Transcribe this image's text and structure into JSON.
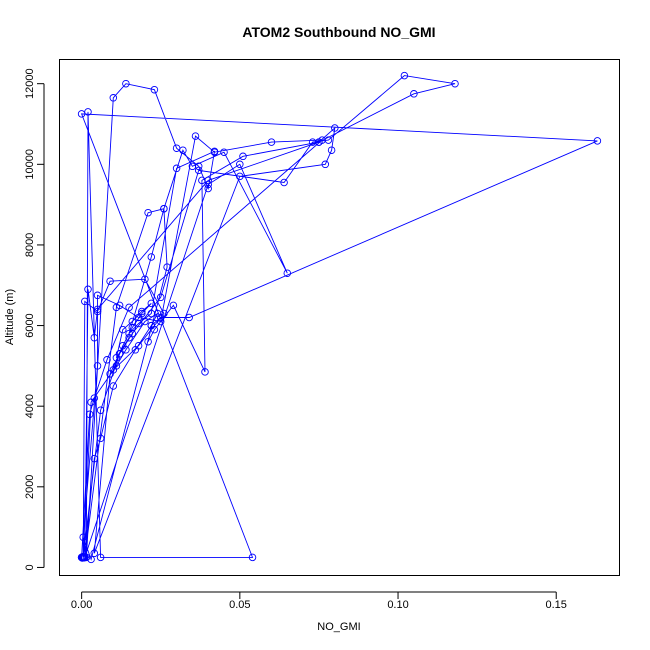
{
  "chart_data": {
    "type": "line",
    "title": "ATOM2 Southbound NO_GMI",
    "xlabel": "NO_GMI",
    "ylabel": "Altitude (m)",
    "xlim": [
      -0.007,
      0.17
    ],
    "ylim": [
      -200,
      12600
    ],
    "x_ticks": [
      0.0,
      0.05,
      0.1,
      0.15
    ],
    "x_tick_labels": [
      "0.00",
      "0.05",
      "0.10",
      "0.15"
    ],
    "y_ticks": [
      0,
      2000,
      4000,
      6000,
      8000,
      10000,
      12000
    ],
    "y_tick_labels": [
      "0",
      "2000",
      "4000",
      "6000",
      "8000",
      "10000",
      "12000"
    ],
    "series_color": "#0000ff",
    "marker": "open-circle",
    "grid": false,
    "series": [
      {
        "x": [
          0.0006,
          0.003,
          0.011,
          0.014,
          0.02,
          0.024,
          0.022,
          0.021,
          0.023,
          0.029,
          0.039,
          0.038,
          0.051,
          0.075,
          0.08,
          0.079,
          0.077,
          0.05,
          0.004,
          0.009,
          0.013,
          0.016,
          0.019,
          0.022,
          0.019,
          0.016,
          0.013,
          0.011,
          0.015,
          0.012,
          0.01,
          0.018,
          0.026,
          0.02,
          0.009,
          0.005,
          0.001,
          0.0005,
          0.006,
          0.012,
          0.016,
          0.025,
          0.037,
          0.064,
          0.073,
          0.078,
          0.102,
          0.118,
          0.105,
          0.075,
          0.04,
          0.005,
          0.004,
          0.002,
          0.001,
          0.011,
          0.021,
          0.026,
          0.032,
          0.035,
          0.045,
          0.065,
          0.05,
          0.04,
          0.001,
          0.004,
          0.006,
          0.01,
          0.017,
          0.022,
          0.025,
          0.034,
          0.163,
          0.0,
          0.054,
          0.006,
          0.002,
          0.0015,
          0.01,
          0.014,
          0.023,
          0.03,
          0.037,
          0.04,
          0.042,
          0.03,
          0.022,
          0.018,
          0.015,
          0.022,
          0.026,
          0.027,
          0.003,
          0.0005,
          0.005,
          0.005,
          0.012,
          0.018,
          0.025,
          0.036,
          0.042,
          0.06,
          0.076,
          0.015,
          0.008,
          0.004,
          0.0025,
          0.0
        ],
        "y": [
          250,
          4100,
          5000,
          5400,
          6100,
          6300,
          6000,
          5600,
          5900,
          6500,
          4850,
          9600,
          10200,
          10550,
          10900,
          10350,
          10000,
          9700,
          350,
          4800,
          5500,
          5950,
          6300,
          6550,
          6350,
          6100,
          5900,
          5200,
          5700,
          5300,
          4900,
          5500,
          6300,
          7150,
          7100,
          6350,
          6600,
          250,
          3900,
          5300,
          5800,
          6700,
          9850,
          9550,
          10550,
          10600,
          12200,
          12000,
          11750,
          10550,
          9600,
          6400,
          5700,
          6900,
          250,
          6450,
          8800,
          8900,
          10350,
          9950,
          10300,
          7300,
          10000,
          9500,
          250,
          2700,
          3200,
          4500,
          5400,
          6000,
          6200,
          6200,
          10580,
          11250,
          250,
          250,
          11300,
          250,
          11650,
          12000,
          11850,
          10400,
          9950,
          9400,
          10320,
          9900,
          6300,
          6050,
          5800,
          7700,
          8900,
          7450,
          200,
          750,
          5000,
          6750,
          6500,
          6200,
          6100,
          10700,
          10300,
          10550,
          10600,
          6450,
          5150,
          4200,
          3800,
          250
        ]
      }
    ]
  }
}
